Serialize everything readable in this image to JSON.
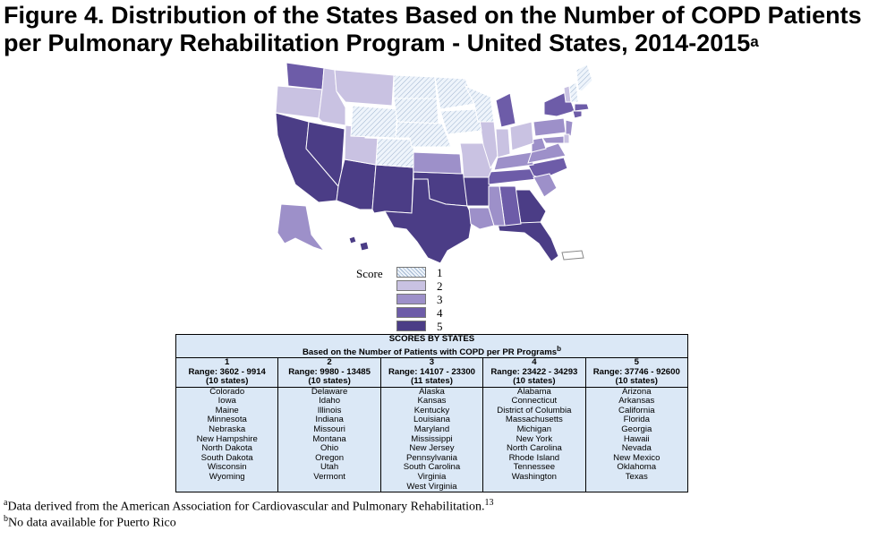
{
  "title": {
    "line1": "Figure 4.  Distribution of the States Based on the Number of COPD Patients",
    "line2": "per Pulmonary Rehabilitation Program - United States, 2014-2015",
    "sup": "a"
  },
  "colors": {
    "score1": "#e6eef8",
    "score2": "#c9c2e2",
    "score3": "#9d90c9",
    "score4": "#6d5ca8",
    "score5": "#4b3d86",
    "table_bg": "#dbe8f6"
  },
  "legend": {
    "label": "Score",
    "items": [
      "1",
      "2",
      "3",
      "4",
      "5"
    ]
  },
  "table": {
    "header_line1": "SCORES BY STATES",
    "header_line2": "Based on the Number of Patients with COPD per PR Programs",
    "header_sup": "b",
    "columns": [
      {
        "score": "1",
        "range": "Range: 3602 - 9914",
        "count": "(10 states)",
        "states": [
          "Colorado",
          "Iowa",
          "Maine",
          "Minnesota",
          "Nebraska",
          "New Hampshire",
          "North Dakota",
          "South Dakota",
          "Wisconsin",
          "Wyoming"
        ]
      },
      {
        "score": "2",
        "range": "Range: 9980 - 13485",
        "count": "(10 states)",
        "states": [
          "Delaware",
          "Idaho",
          "Illinois",
          "Indiana",
          "Missouri",
          "Montana",
          "Ohio",
          "Oregon",
          "Utah",
          "Vermont"
        ]
      },
      {
        "score": "3",
        "range": "Range: 14107 - 23300",
        "count": "(11 states)",
        "states": [
          "Alaska",
          "Kansas",
          "Kentucky",
          "Louisiana",
          "Maryland",
          "Mississippi",
          "New Jersey",
          "Pennsylvania",
          "South Carolina",
          "Virginia",
          "West Virginia"
        ]
      },
      {
        "score": "4",
        "range": "Range: 23422 - 34293",
        "count": "(10 states)",
        "states": [
          "Alabama",
          "Connecticut",
          "District of Columbia",
          "Massachusetts",
          "Michigan",
          "New York",
          "North Carolina",
          "Rhode Island",
          "Tennessee",
          "Washington"
        ]
      },
      {
        "score": "5",
        "range": "Range: 37746 - 92600",
        "count": "(10 states)",
        "states": [
          "Arizona",
          "Arkansas",
          "California",
          "Florida",
          "Georgia",
          "Hawaii",
          "Nevada",
          "New Mexico",
          "Oklahoma",
          "Texas"
        ]
      }
    ]
  },
  "footnotes": [
    {
      "sup": "a",
      "text": "Data derived from the American Association for Cardiovascular and Pulmonary Rehabilitation.",
      "ref": "13"
    },
    {
      "sup": "b",
      "text": "No data available for Puerto Rico",
      "ref": ""
    }
  ]
}
